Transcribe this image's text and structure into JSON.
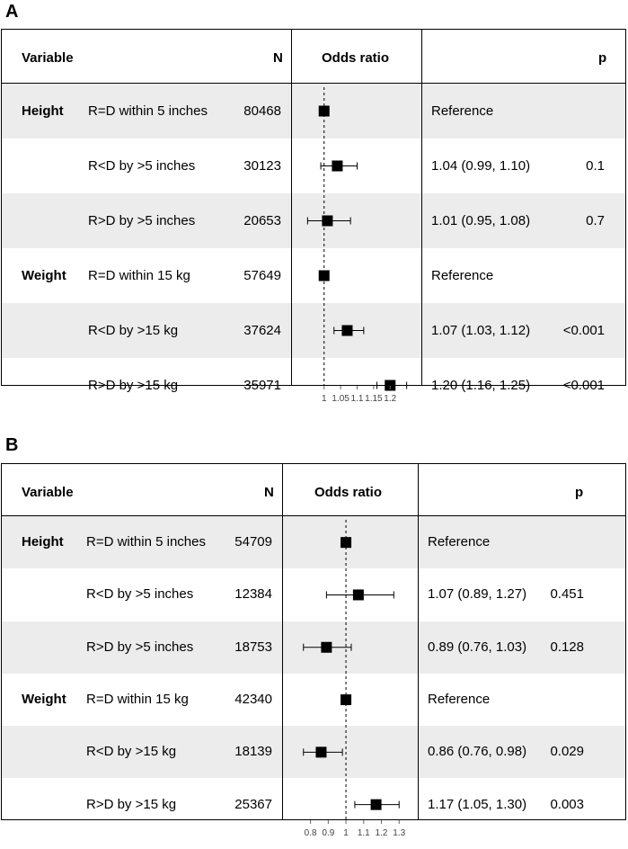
{
  "panels": [
    {
      "label": "A",
      "headers": {
        "variable": "Variable",
        "n": "N",
        "or": "Odds ratio",
        "p": "p"
      },
      "rows": [
        {
          "group": "Height",
          "sub": "R=D within 5 inches",
          "n": "80468",
          "ci": "Reference",
          "p": ""
        },
        {
          "group": "",
          "sub": "R<D by >5 inches",
          "n": "30123",
          "ci": "1.04 (0.99, 1.10)",
          "p": "0.1"
        },
        {
          "group": "",
          "sub": "R>D by >5 inches",
          "n": "20653",
          "ci": "1.01 (0.95, 1.08)",
          "p": "0.7"
        },
        {
          "group": "Weight",
          "sub": "R=D within 15 kg",
          "n": "57649",
          "ci": "Reference",
          "p": ""
        },
        {
          "group": "",
          "sub": "R<D by >15 kg",
          "n": "37624",
          "ci": "1.07 (1.03, 1.12)",
          "p": "<0.001"
        },
        {
          "group": "",
          "sub": "R>D by >15 kg",
          "n": "35971",
          "ci": "1.20 (1.16, 1.25)",
          "p": "<0.001"
        }
      ],
      "ticks": [
        "1",
        "1.05",
        "1.1",
        "1.15",
        "1.2"
      ]
    },
    {
      "label": "B",
      "headers": {
        "variable": "Variable",
        "n": "N",
        "or": "Odds ratio",
        "p": "p"
      },
      "rows": [
        {
          "group": "Height",
          "sub": "R=D within 5 inches",
          "n": "54709",
          "ci": "Reference",
          "p": ""
        },
        {
          "group": "",
          "sub": "R<D by >5 inches",
          "n": "12384",
          "ci": "1.07 (0.89, 1.27)",
          "p": "0.451"
        },
        {
          "group": "",
          "sub": "R>D by >5 inches",
          "n": "18753",
          "ci": "0.89 (0.76, 1.03)",
          "p": "0.128"
        },
        {
          "group": "Weight",
          "sub": "R=D within 15 kg",
          "n": "42340",
          "ci": "Reference",
          "p": ""
        },
        {
          "group": "",
          "sub": "R<D by >15 kg",
          "n": "18139",
          "ci": "0.86 (0.76, 0.98)",
          "p": "0.029"
        },
        {
          "group": "",
          "sub": "R>D by >15 kg",
          "n": "25367",
          "ci": "1.17 (1.05, 1.30)",
          "p": "0.003"
        }
      ],
      "ticks": [
        "0.8",
        "0.9",
        "1",
        "1.1",
        "1.2",
        "1.3"
      ]
    }
  ],
  "chart_data": [
    {
      "type": "forest",
      "title": "A",
      "xlabel": "Odds ratio",
      "reference_line": 1,
      "xlim": [
        0.93,
        1.27
      ],
      "x_ticks": [
        1,
        1.05,
        1.1,
        1.15,
        1.2
      ],
      "categories": [
        "R=D within 5 inches",
        "R<D by >5 inches",
        "R>D by >5 inches",
        "R=D within 15 kg",
        "R<D by >15 kg",
        "R>D by >15 kg"
      ],
      "estimates": [
        1,
        1.04,
        1.01,
        1,
        1.07,
        1.2
      ],
      "lower": [
        null,
        0.99,
        0.95,
        null,
        1.03,
        1.16
      ],
      "upper": [
        null,
        1.1,
        1.08,
        null,
        1.12,
        1.25
      ]
    },
    {
      "type": "forest",
      "title": "B",
      "xlabel": "Odds ratio",
      "reference_line": 1,
      "xlim": [
        0.67,
        1.38
      ],
      "x_ticks": [
        0.8,
        0.9,
        1,
        1.1,
        1.2,
        1.3
      ],
      "categories": [
        "R=D within 5 inches",
        "R<D by >5 inches",
        "R>D by >5 inches",
        "R=D within 15 kg",
        "R<D by >15 kg",
        "R>D by >15 kg"
      ],
      "estimates": [
        1,
        1.07,
        0.89,
        1,
        0.86,
        1.17
      ],
      "lower": [
        null,
        0.89,
        0.76,
        null,
        0.76,
        1.05
      ],
      "upper": [
        null,
        1.27,
        1.03,
        null,
        0.98,
        1.3
      ]
    }
  ]
}
